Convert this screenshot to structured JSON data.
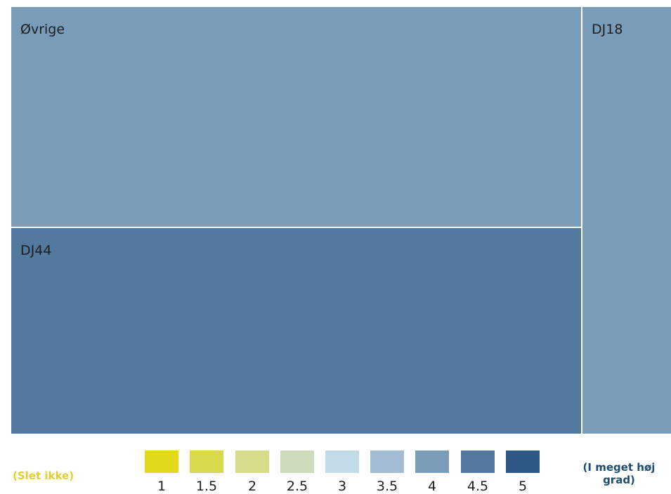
{
  "chart_data": {
    "type": "treemap",
    "nodes": [
      {
        "label": "Øvrige",
        "color": "#799db8"
      },
      {
        "label": "DJ44",
        "color": "#537a9e"
      },
      {
        "label": "DJ18",
        "color": "#799db8"
      }
    ],
    "legend": {
      "low_label": "(Slet ikke)",
      "high_label": "(I meget høj grad)",
      "scale": [
        {
          "value": "1",
          "color": "#e2d81c"
        },
        {
          "value": "1.5",
          "color": "#d9d94d"
        },
        {
          "value": "2",
          "color": "#d6dc88"
        },
        {
          "value": "2.5",
          "color": "#cfdcbb"
        },
        {
          "value": "3",
          "color": "#c2dbe8"
        },
        {
          "value": "3.5",
          "color": "#a2bdd3"
        },
        {
          "value": "4",
          "color": "#799db8"
        },
        {
          "value": "4.5",
          "color": "#537a9e"
        },
        {
          "value": "5",
          "color": "#2d5986"
        }
      ]
    }
  }
}
